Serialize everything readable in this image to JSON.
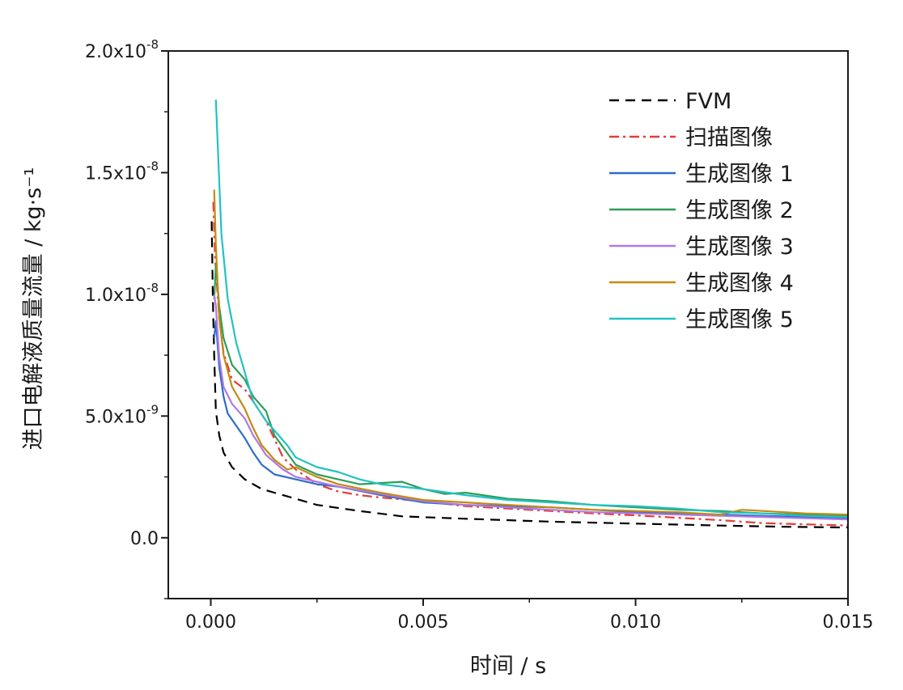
{
  "chart_data": {
    "type": "line",
    "xlabel": "时间 / s",
    "ylabel": "进口电解液质量流量 / kg·s⁻¹",
    "xlim": [
      -0.001,
      0.015
    ],
    "ylim": [
      -2.5e-09,
      2e-08
    ],
    "grid": false,
    "legend_position": "top-right",
    "x_ticks": [
      {
        "value": 0.0,
        "label": "0.000"
      },
      {
        "value": 0.005,
        "label": "0.005"
      },
      {
        "value": 0.01,
        "label": "0.010"
      },
      {
        "value": 0.015,
        "label": "0.015"
      }
    ],
    "y_ticks": [
      {
        "value": 0.0,
        "label": "0.0",
        "mant": "0.0",
        "exp": ""
      },
      {
        "value": 5e-09,
        "label": "5.0x10-9",
        "mant": "5.0x10",
        "exp": "-9"
      },
      {
        "value": 1e-08,
        "label": "1.0x10-8",
        "mant": "1.0x10",
        "exp": "-8"
      },
      {
        "value": 1.5e-08,
        "label": "1.5x10-8",
        "mant": "1.5x10",
        "exp": "-8"
      },
      {
        "value": 2e-08,
        "label": "2.0x10-8",
        "mant": "2.0x10",
        "exp": "-8"
      }
    ],
    "series": [
      {
        "name": "FVM",
        "color": "#000000",
        "dash": "12,8",
        "x": [
          2e-05,
          5e-05,
          8e-05,
          0.00012,
          0.0002,
          0.0003,
          0.0005,
          0.0008,
          0.0012,
          0.0018,
          0.0025,
          0.0035,
          0.0045,
          0.006,
          0.008,
          0.01,
          0.012,
          0.0135,
          0.015
        ],
        "y": [
          1.3e-08,
          9.8e-09,
          7.5e-09,
          5.2e-09,
          4.2e-09,
          3.5e-09,
          2.9e-09,
          2.4e-09,
          2e-09,
          1.7e-09,
          1.35e-09,
          1.1e-09,
          8.8e-10,
          7.8e-10,
          6.6e-10,
          5.8e-10,
          5e-10,
          4.5e-10,
          4.2e-10
        ]
      },
      {
        "name": "扫描图像",
        "color": "#e63b3b",
        "dash": "12,5,3,5",
        "x": [
          6e-05,
          0.0001,
          0.0002,
          0.0003,
          0.0005,
          0.0008,
          0.001,
          0.0013,
          0.0017,
          0.002,
          0.0025,
          0.003,
          0.0035,
          0.004,
          0.005,
          0.006,
          0.007,
          0.008,
          0.009,
          0.01,
          0.011,
          0.012,
          0.013,
          0.014,
          0.015
        ],
        "y": [
          1.38e-08,
          1.15e-08,
          9e-09,
          7.6e-09,
          6.5e-09,
          6.1e-09,
          5.6e-09,
          4.8e-09,
          3.3e-09,
          2.8e-09,
          2.2e-09,
          1.9e-09,
          1.75e-09,
          1.65e-09,
          1.5e-09,
          1.3e-09,
          1.2e-09,
          1.1e-09,
          1e-09,
          9.2e-10,
          8.2e-10,
          7.2e-10,
          6e-10,
          5.5e-10,
          5e-10
        ]
      },
      {
        "name": "生成图像 1",
        "color": "#2f6cc8",
        "dash": "",
        "x": [
          8e-05,
          0.00012,
          0.0002,
          0.0003,
          0.0004,
          0.0006,
          0.0008,
          0.001,
          0.0012,
          0.0015,
          0.002,
          0.0025,
          0.003,
          0.004,
          0.005,
          0.006,
          0.007,
          0.008,
          0.009,
          0.01,
          0.011,
          0.012,
          0.013,
          0.014,
          0.015
        ],
        "y": [
          8.2e-09,
          8.9e-09,
          7e-09,
          5.8e-09,
          5.1e-09,
          4.6e-09,
          4.1e-09,
          3.5e-09,
          3e-09,
          2.6e-09,
          2.4e-09,
          2.2e-09,
          2.1e-09,
          1.75e-09,
          1.45e-09,
          1.35e-09,
          1.3e-09,
          1.25e-09,
          1.15e-09,
          1.05e-09,
          1e-09,
          9.5e-10,
          9e-10,
          8.5e-10,
          8e-10
        ]
      },
      {
        "name": "生成图像 2",
        "color": "#2e9d5a",
        "dash": "",
        "x": [
          8e-05,
          0.00012,
          0.0002,
          0.0003,
          0.0005,
          0.0008,
          0.001,
          0.0013,
          0.0015,
          0.002,
          0.0025,
          0.003,
          0.0035,
          0.004,
          0.0045,
          0.005,
          0.0055,
          0.006,
          0.007,
          0.008,
          0.009,
          0.01,
          0.011,
          0.012,
          0.013,
          0.014,
          0.015
        ],
        "y": [
          9.8e-09,
          1.12e-08,
          9.5e-09,
          8.2e-09,
          7.1e-09,
          6.5e-09,
          5.8e-09,
          5.2e-09,
          4.2e-09,
          3e-09,
          2.6e-09,
          2.4e-09,
          2.2e-09,
          2.25e-09,
          2.3e-09,
          2e-09,
          1.8e-09,
          1.85e-09,
          1.6e-09,
          1.5e-09,
          1.35e-09,
          1.25e-09,
          1.15e-09,
          1.1e-09,
          1e-09,
          9.5e-10,
          9e-10
        ]
      },
      {
        "name": "生成图像 3",
        "color": "#b07ae0",
        "dash": "",
        "x": [
          8e-05,
          0.00012,
          0.0002,
          0.0003,
          0.0005,
          0.0008,
          0.001,
          0.0013,
          0.0017,
          0.002,
          0.0025,
          0.003,
          0.004,
          0.005,
          0.006,
          0.007,
          0.008,
          0.009,
          0.01,
          0.011,
          0.012,
          0.013,
          0.014,
          0.015
        ],
        "y": [
          1e-08,
          9.5e-09,
          7.4e-09,
          6.2e-09,
          5.5e-09,
          4.9e-09,
          4.2e-09,
          3.4e-09,
          2.8e-09,
          2.5e-09,
          2.3e-09,
          2.1e-09,
          1.8e-09,
          1.5e-09,
          1.35e-09,
          1.25e-09,
          1.15e-09,
          1.05e-09,
          1e-09,
          9.5e-10,
          9e-10,
          8.5e-10,
          8e-10,
          7.5e-10
        ]
      },
      {
        "name": "生成图像 4",
        "color": "#c48a12",
        "dash": "",
        "x": [
          8e-05,
          0.00012,
          0.0002,
          0.0003,
          0.0005,
          0.0008,
          0.001,
          0.0012,
          0.0015,
          0.0018,
          0.002,
          0.0025,
          0.003,
          0.004,
          0.005,
          0.006,
          0.007,
          0.008,
          0.009,
          0.01,
          0.011,
          0.012,
          0.0125,
          0.013,
          0.014,
          0.015
        ],
        "y": [
          1.43e-08,
          1.2e-08,
          9e-09,
          7.5e-09,
          6.2e-09,
          5.3e-09,
          4.5e-09,
          3.8e-09,
          3.2e-09,
          2.8e-09,
          2.9e-09,
          2.5e-09,
          2.2e-09,
          1.85e-09,
          1.55e-09,
          1.45e-09,
          1.35e-09,
          1.25e-09,
          1.15e-09,
          1.1e-09,
          1.05e-09,
          9.5e-10,
          1.15e-09,
          1.1e-09,
          1e-09,
          9.5e-10
        ]
      },
      {
        "name": "生成图像 5",
        "color": "#22c2c2",
        "dash": "",
        "x": [
          0.00012,
          0.00018,
          0.00025,
          0.0004,
          0.0006,
          0.0008,
          0.001,
          0.0013,
          0.0015,
          0.0018,
          0.002,
          0.0025,
          0.003,
          0.0035,
          0.004,
          0.005,
          0.006,
          0.007,
          0.008,
          0.009,
          0.01,
          0.011,
          0.012,
          0.013,
          0.014,
          0.015
        ],
        "y": [
          1.8e-08,
          1.55e-08,
          1.25e-08,
          9.8e-09,
          8e-09,
          6.8e-09,
          5.6e-09,
          4.8e-09,
          4.4e-09,
          3.8e-09,
          3.3e-09,
          2.9e-09,
          2.7e-09,
          2.4e-09,
          2.2e-09,
          2e-09,
          1.75e-09,
          1.55e-09,
          1.45e-09,
          1.35e-09,
          1.3e-09,
          1.2e-09,
          1.05e-09,
          1e-09,
          9e-10,
          8.5e-10
        ]
      }
    ]
  }
}
